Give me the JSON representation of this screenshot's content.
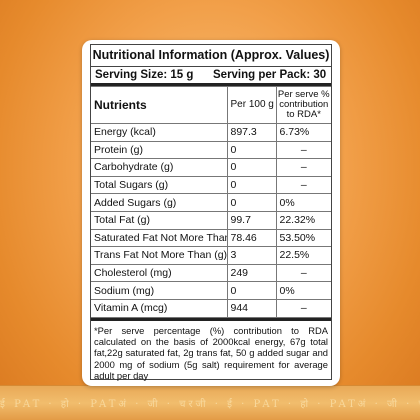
{
  "label": {
    "title": "Nutritional Information (Approx. Values)",
    "serving_size": "Serving Size: 15 g",
    "serving_per_pack": "Serving per Pack: 30",
    "headers": {
      "nutrients": "Nutrients",
      "per100": "Per 100 g",
      "rda": "Per serve % contribution to RDA*"
    },
    "rows": [
      {
        "name": "Energy (kcal)",
        "per100": "897.3",
        "rda": "6.73%"
      },
      {
        "name": "Protein (g)",
        "per100": "0",
        "rda": "–"
      },
      {
        "name": "Carbohydrate (g)",
        "per100": "0",
        "rda": "–"
      },
      {
        "name": "Total Sugars (g)",
        "per100": "0",
        "rda": "–"
      },
      {
        "name": "Added Sugars (g)",
        "per100": "0",
        "rda": "0%"
      },
      {
        "name": "Total Fat (g)",
        "per100": "99.7",
        "rda": "22.32%"
      },
      {
        "name": "Saturated Fat Not More Than (g)",
        "per100": "78.46",
        "rda": "53.50%"
      },
      {
        "name": "Trans Fat Not More Than (g)",
        "per100": "3",
        "rda": "22.5%"
      },
      {
        "name": "Cholesterol (mg)",
        "per100": "249",
        "rda": "–"
      },
      {
        "name": "Sodium (mg)",
        "per100": "0",
        "rda": "0%"
      },
      {
        "name": "Vitamin A (mcg)",
        "per100": "944",
        "rda": "–"
      }
    ],
    "footnote": "*Per serve percentage (%) contribution to RDA calculated on the basis of 2000kcal energy, 67g total fat,22g saturated fat, 2g trans fat, 50 g added sugar and 2000 mg of sodium (5g salt) requirement for average adult per day"
  },
  "background": {
    "band_text": "ई PAT · हो · PATअं · जी · चरजी · ई · PAT · हो · PATअं · जी · चरजी · ई"
  }
}
